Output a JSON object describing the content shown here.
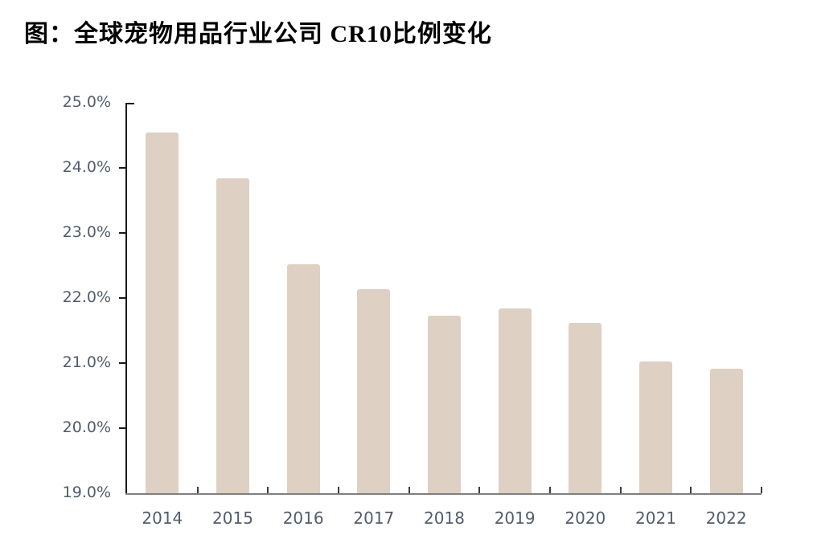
{
  "title": "图：全球宠物用品行业公司 CR10比例变化",
  "chart_data": {
    "type": "bar",
    "title": "图：全球宠物用品行业公司 CR10比例变化",
    "categories": [
      "2014",
      "2015",
      "2016",
      "2017",
      "2018",
      "2019",
      "2020",
      "2021",
      "2022"
    ],
    "values": [
      24.54,
      23.84,
      22.52,
      22.13,
      21.73,
      21.84,
      21.62,
      21.02,
      20.91
    ],
    "unit": "%",
    "xlabel": "",
    "ylabel": "",
    "ylim": [
      19.0,
      25.0
    ],
    "ytick_step": 1.0,
    "ytick_labels": [
      "25.0%",
      "24.0%",
      "23.0%",
      "22.0%",
      "21.0%",
      "20.0%",
      "19.0%"
    ],
    "grid": false,
    "legend_position": "none",
    "colors": {
      "bar": "#ded0c2",
      "y_axis": "#1a1a1a",
      "x_axis": "#7f7f7f",
      "tick": "#3d3d3d",
      "axis_label": "#525c6b",
      "title": "#000000",
      "background": "#ffffff"
    }
  }
}
